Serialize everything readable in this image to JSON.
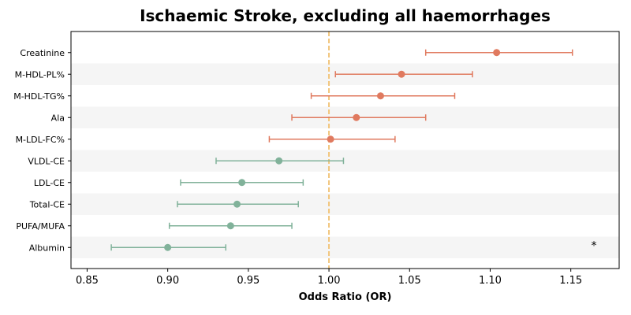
{
  "chart_data": {
    "type": "forest",
    "title": "Ischaemic Stroke, excluding all haemorrhages",
    "xlabel": "Odds Ratio (OR)",
    "ylabel": "",
    "xlim": [
      0.84,
      1.18
    ],
    "xticks": [
      "0.85",
      "0.90",
      "0.95",
      "1.00",
      "1.05",
      "1.10",
      "1.15"
    ],
    "reference_line": 1.0,
    "colors": {
      "positive": "#e07a5f",
      "negative": "#81b29a",
      "reference": "#f2c57c",
      "band": "#f5f5f5"
    },
    "rows": [
      {
        "label": "Creatinine",
        "or": 1.104,
        "lo": 1.06,
        "hi": 1.151,
        "annotation": ""
      },
      {
        "label": "M-HDL-PL%",
        "or": 1.045,
        "lo": 1.004,
        "hi": 1.089,
        "annotation": ""
      },
      {
        "label": "M-HDL-TG%",
        "or": 1.032,
        "lo": 0.989,
        "hi": 1.078,
        "annotation": ""
      },
      {
        "label": "Ala",
        "or": 1.017,
        "lo": 0.977,
        "hi": 1.06,
        "annotation": ""
      },
      {
        "label": "M-LDL-FC%",
        "or": 1.001,
        "lo": 0.963,
        "hi": 1.041,
        "annotation": ""
      },
      {
        "label": "VLDL-CE",
        "or": 0.969,
        "lo": 0.93,
        "hi": 1.009,
        "annotation": ""
      },
      {
        "label": "LDL-CE",
        "or": 0.946,
        "lo": 0.908,
        "hi": 0.984,
        "annotation": ""
      },
      {
        "label": "Total-CE",
        "or": 0.943,
        "lo": 0.906,
        "hi": 0.981,
        "annotation": ""
      },
      {
        "label": "PUFA/MUFA",
        "or": 0.939,
        "lo": 0.901,
        "hi": 0.977,
        "annotation": ""
      },
      {
        "label": "Albumin",
        "or": 0.9,
        "lo": 0.865,
        "hi": 0.936,
        "annotation": "*"
      }
    ]
  }
}
